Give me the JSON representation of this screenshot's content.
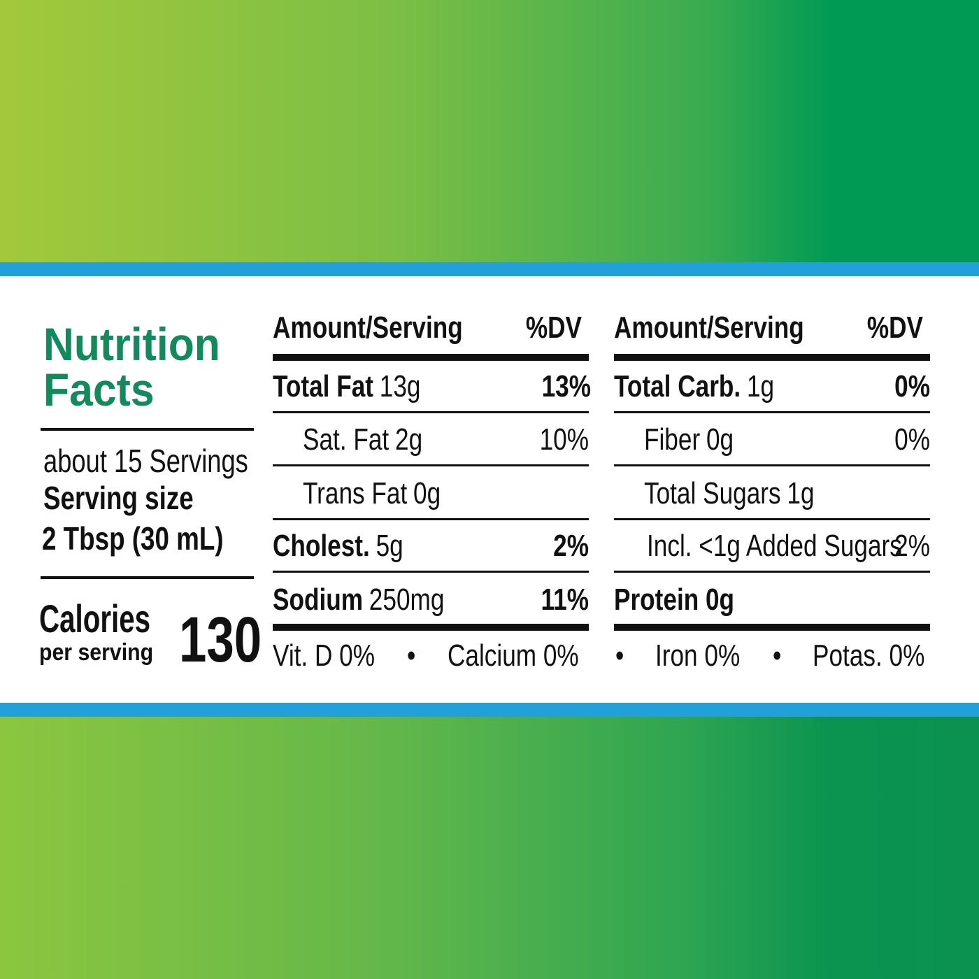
{
  "header": {
    "title_lines": [
      "Nutrition",
      "Facts"
    ]
  },
  "servings": "about 15 Servings",
  "serving_size_label": "Serving size",
  "serving_size": "2 Tbsp (30 mL)",
  "calories_label": "Calories",
  "calories_sub": "per serving",
  "calories": "130",
  "columns": [
    {
      "header_amount": "Amount/Serving",
      "header_dv": "%DV",
      "rows": [
        {
          "name": "Total Fat",
          "amount": "13g",
          "dv": "13%",
          "bold": true
        },
        {
          "name": "Sat. Fat",
          "amount": "2g",
          "dv": "10%",
          "bold": false
        },
        {
          "name": "Trans Fat",
          "amount": "0g",
          "bold": false
        },
        {
          "name": "Cholest.",
          "amount": "5g",
          "dv": "2%",
          "bold": true
        },
        {
          "name": "Sodium",
          "amount": "250mg",
          "dv": "11%",
          "bold": true
        }
      ]
    },
    {
      "header_amount": "Amount/Serving",
      "header_dv": "%DV",
      "rows": [
        {
          "name": "Total Carb.",
          "amount": "1g",
          "dv": "0%",
          "bold": true
        },
        {
          "name": "Fiber",
          "amount": "0g",
          "dv": "0%",
          "bold": false
        },
        {
          "name": "Total Sugars",
          "amount": "1g",
          "bold": false
        },
        {
          "name": "Incl. <1g Added Sugars",
          "dv": "2%",
          "bold": false
        },
        {
          "name": "Protein 0g",
          "bold": true
        }
      ]
    }
  ],
  "footer": [
    "Vit. D 0%",
    "•",
    "Calcium 0%",
    "•",
    "Iron 0%",
    "•",
    "Potas. 0%"
  ]
}
